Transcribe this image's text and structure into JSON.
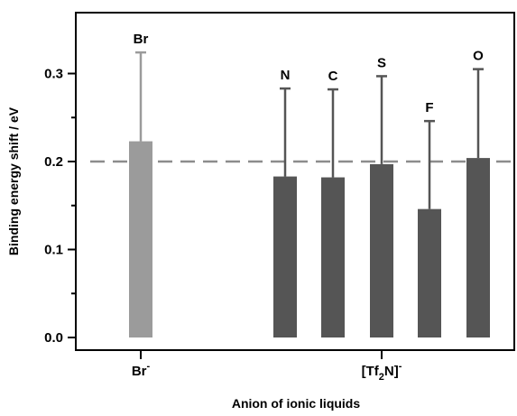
{
  "chart_data": {
    "type": "bar",
    "xlabel": "Anion of ionic liquids",
    "ylabel": "Binding energy shift / eV",
    "ylim": [
      0,
      0.35
    ],
    "yticks": [
      0.0,
      0.1,
      0.2,
      0.3
    ],
    "ytick_labels": [
      "0.0",
      "0.1",
      "0.2",
      "0.3"
    ],
    "grid": false,
    "reference_line": {
      "y": 0.2,
      "style": "dashed",
      "color": "#8c8c8c"
    },
    "groups": [
      {
        "name": "Br",
        "superscript": "-",
        "subscript": ""
      },
      {
        "name_prefix": "[Tf",
        "subscript": "2",
        "name_suffix": "N]",
        "superscript": "-"
      }
    ],
    "bars": [
      {
        "label": "Br",
        "group": 0,
        "value": 0.223,
        "error": 0.101,
        "color": "#9b9b9b"
      },
      {
        "label": "N",
        "group": 1,
        "value": 0.183,
        "error": 0.1,
        "color": "#555555"
      },
      {
        "label": "C",
        "group": 1,
        "value": 0.182,
        "error": 0.1,
        "color": "#555555"
      },
      {
        "label": "S",
        "group": 1,
        "value": 0.197,
        "error": 0.1,
        "color": "#555555"
      },
      {
        "label": "F",
        "group": 1,
        "value": 0.146,
        "error": 0.1,
        "color": "#555555"
      },
      {
        "label": "O",
        "group": 1,
        "value": 0.204,
        "error": 0.101,
        "color": "#555555"
      }
    ]
  }
}
